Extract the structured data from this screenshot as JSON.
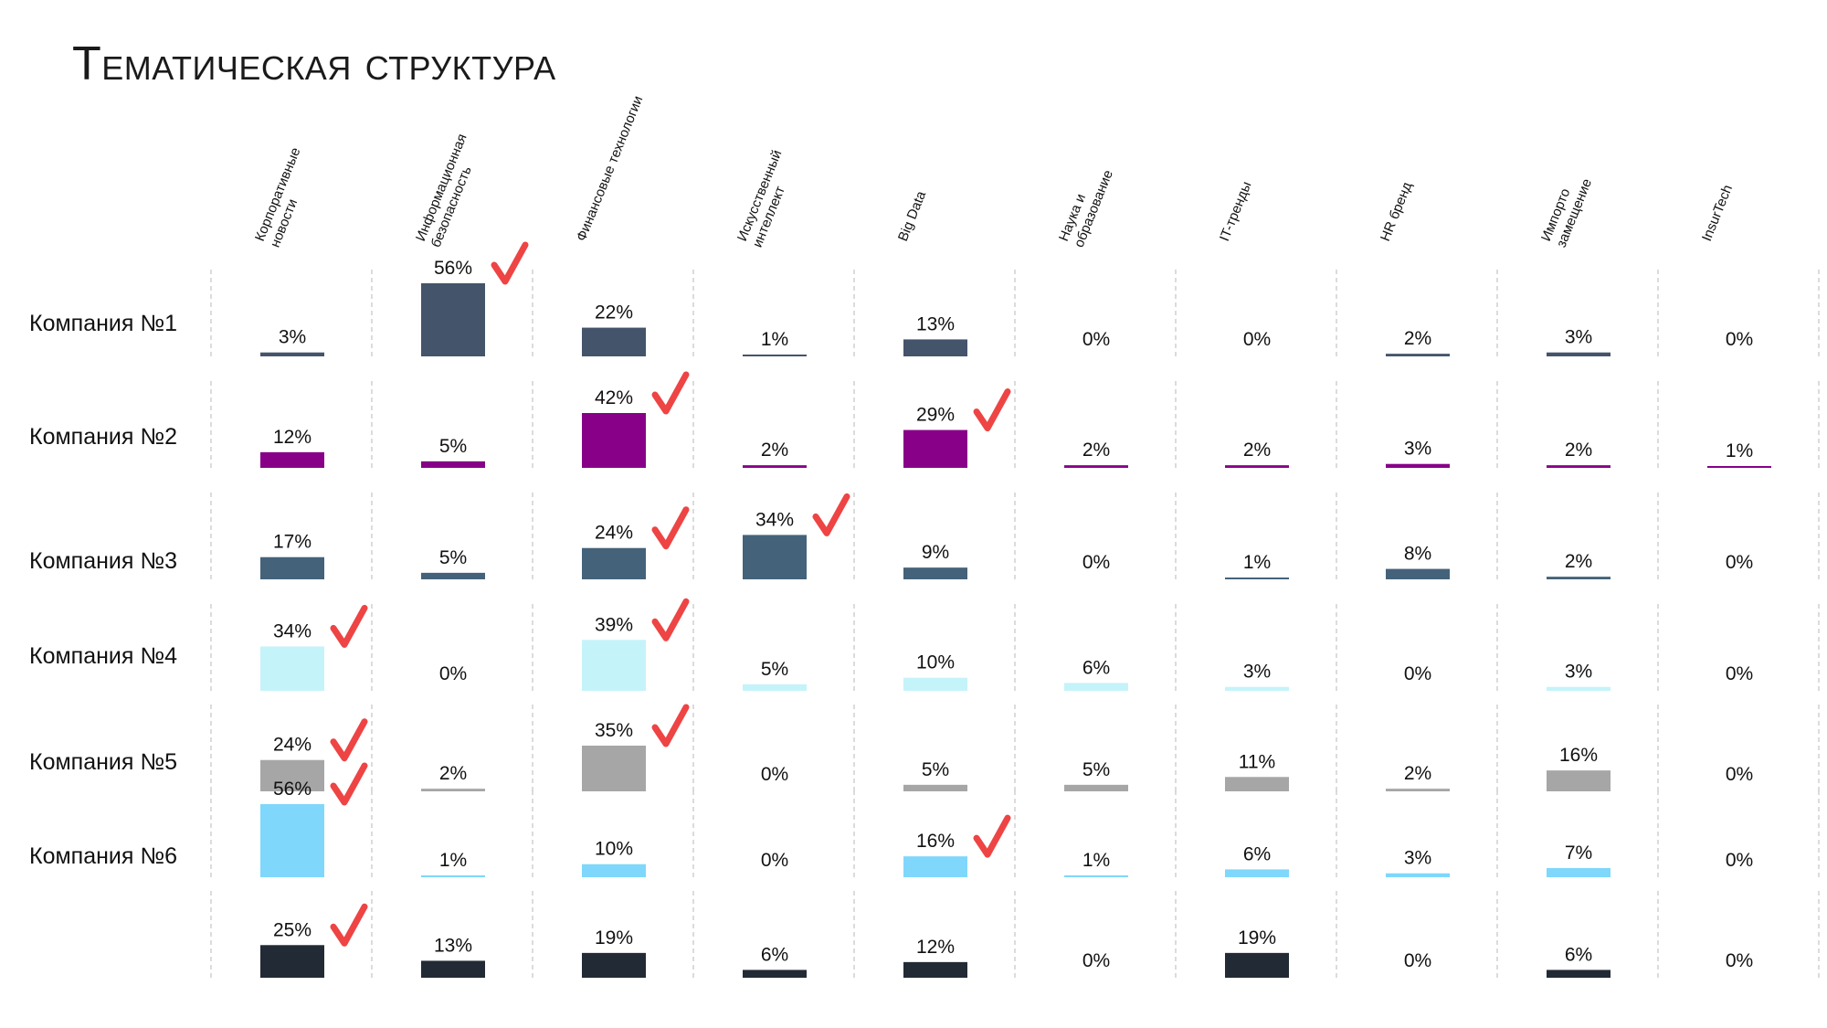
{
  "title": "Тематическая структура",
  "chart_data": {
    "type": "bar",
    "layout": "small-multiples",
    "categories": [
      "Корпоративные новости",
      "Информационная безопасность",
      "Финансовые технологии",
      "Искусственный интеллект",
      "Big Data",
      "Наука и образование",
      "IT-тренды",
      "HR бренд",
      "Импорто замещение",
      "InsurTech"
    ],
    "category_lines": [
      [
        "Корпоративные",
        "новости"
      ],
      [
        "Информационная",
        "безопасность"
      ],
      [
        "Финансовые технологии"
      ],
      [
        "Искусственный",
        "интеллект"
      ],
      [
        "Big Data"
      ],
      [
        "Наука и",
        "образование"
      ],
      [
        "IT-тренды"
      ],
      [
        "HR бренд"
      ],
      [
        "Импорто",
        "замещение"
      ],
      [
        "InsurTech"
      ]
    ],
    "series": [
      {
        "name": "Компания №1",
        "color": "#44546a",
        "values": [
          3,
          56,
          22,
          1,
          13,
          0,
          0,
          2,
          3,
          0
        ],
        "checked": [
          1
        ]
      },
      {
        "name": "Компания №2",
        "color": "#870087",
        "values": [
          12,
          5,
          42,
          2,
          29,
          2,
          2,
          3,
          2,
          1
        ],
        "checked": [
          2,
          4
        ]
      },
      {
        "name": "Компания №3",
        "color": "#44627a",
        "values": [
          17,
          5,
          24,
          34,
          9,
          0,
          1,
          8,
          2,
          0
        ],
        "checked": [
          2,
          3
        ]
      },
      {
        "name": "Компания №4",
        "color": "#c5f3fa",
        "values": [
          34,
          0,
          39,
          5,
          10,
          6,
          3,
          0,
          3,
          0
        ],
        "checked": [
          0,
          2
        ]
      },
      {
        "name": "Компания №5",
        "color": "#a6a6a6",
        "values": [
          24,
          2,
          35,
          0,
          5,
          5,
          11,
          2,
          16,
          0
        ],
        "checked": [
          0,
          2
        ]
      },
      {
        "name": "Компания №6",
        "color": "#7fd7fb",
        "values": [
          56,
          1,
          10,
          0,
          16,
          1,
          6,
          3,
          7,
          0
        ],
        "checked": [
          0,
          4
        ]
      },
      {
        "name": "",
        "color": "#222a35",
        "values": [
          25,
          13,
          19,
          6,
          12,
          0,
          19,
          0,
          6,
          0
        ],
        "checked": [
          0
        ]
      }
    ],
    "value_suffix": "%",
    "accent_check_color": "#ee4444"
  }
}
